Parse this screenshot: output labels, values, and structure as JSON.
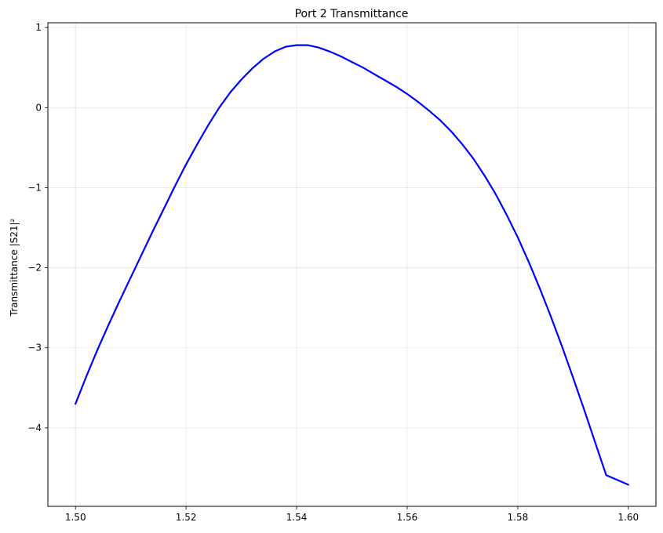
{
  "chart_data": {
    "type": "line",
    "title": "Port 2 Transmittance",
    "xlabel": "",
    "ylabel": "Transmittance |S21|²",
    "xlim": [
      1.495,
      1.605
    ],
    "ylim": [
      -4.98,
      1.06
    ],
    "xticks": [
      1.5,
      1.52,
      1.54,
      1.56,
      1.58,
      1.6
    ],
    "xtick_labels": [
      "1.50",
      "1.52",
      "1.54",
      "1.56",
      "1.58",
      "1.60"
    ],
    "yticks": [
      1,
      0,
      -1,
      -2,
      -3,
      -4
    ],
    "ytick_labels": [
      "1",
      "0",
      "−1",
      "−2",
      "−3",
      "−4"
    ],
    "grid": true,
    "line_color": "#0000ff",
    "series": [
      {
        "x": [
          1.5,
          1.502,
          1.504,
          1.506,
          1.508,
          1.51,
          1.512,
          1.514,
          1.516,
          1.518,
          1.52,
          1.522,
          1.524,
          1.526,
          1.528,
          1.53,
          1.532,
          1.534,
          1.536,
          1.538,
          1.54,
          1.542,
          1.544,
          1.546,
          1.548,
          1.55,
          1.552,
          1.554,
          1.556,
          1.558,
          1.56,
          1.562,
          1.564,
          1.566,
          1.568,
          1.57,
          1.572,
          1.574,
          1.576,
          1.578,
          1.58,
          1.582,
          1.584,
          1.586,
          1.588,
          1.59,
          1.592,
          1.594,
          1.596,
          1.598,
          1.6
        ],
        "y": [
          -3.7,
          -3.35,
          -3.02,
          -2.71,
          -2.41,
          -2.12,
          -1.83,
          -1.54,
          -1.26,
          -0.98,
          -0.71,
          -0.46,
          -0.22,
          0.0,
          0.19,
          0.35,
          0.49,
          0.61,
          0.7,
          0.76,
          0.78,
          0.78,
          0.75,
          0.7,
          0.64,
          0.57,
          0.5,
          0.42,
          0.34,
          0.26,
          0.17,
          0.07,
          -0.04,
          -0.16,
          -0.3,
          -0.46,
          -0.64,
          -0.85,
          -1.08,
          -1.34,
          -1.62,
          -1.93,
          -2.26,
          -2.61,
          -2.98,
          -3.37,
          -3.77,
          -4.18,
          -4.59,
          -4.65,
          -4.71
        ]
      }
    ]
  }
}
